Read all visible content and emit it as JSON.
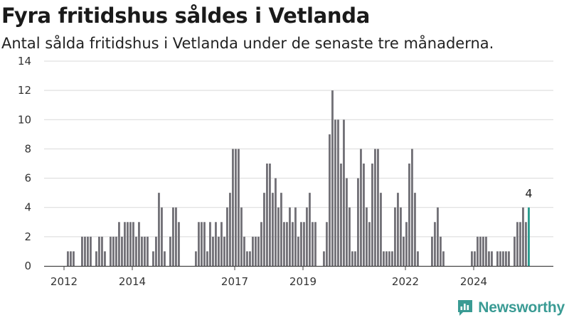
{
  "header": {
    "title": "Fyra fritidshus såldes i Vetlanda",
    "subtitle": "Antal sålda fritidshus i Vetlanda under de senaste tre månaderna."
  },
  "brand": {
    "name": "Newsworthy",
    "color": "#3a9b94"
  },
  "chart_data": {
    "type": "bar",
    "ylim": [
      0,
      14
    ],
    "yticks": [
      0,
      2,
      4,
      6,
      8,
      10,
      12,
      14
    ],
    "start_month": "2011-06",
    "xtick_labels": [
      {
        "label": "2012",
        "date": "2012-01"
      },
      {
        "label": "2014",
        "date": "2014-01"
      },
      {
        "label": "2017",
        "date": "2017-01"
      },
      {
        "label": "2019",
        "date": "2019-01"
      },
      {
        "label": "2022",
        "date": "2022-01"
      },
      {
        "label": "2024",
        "date": "2024-01"
      }
    ],
    "values": [
      0,
      0,
      0,
      0,
      0,
      0,
      0,
      0,
      1,
      1,
      1,
      0,
      0,
      2,
      2,
      2,
      2,
      0,
      1,
      2,
      2,
      1,
      0,
      2,
      2,
      2,
      3,
      2,
      3,
      3,
      3,
      3,
      2,
      3,
      2,
      2,
      2,
      0,
      1,
      2,
      5,
      4,
      1,
      0,
      2,
      4,
      4,
      3,
      0,
      0,
      0,
      0,
      0,
      1,
      3,
      3,
      3,
      1,
      3,
      2,
      3,
      2,
      3,
      2,
      4,
      5,
      8,
      8,
      8,
      4,
      2,
      1,
      1,
      2,
      2,
      2,
      3,
      5,
      7,
      7,
      5,
      6,
      4,
      5,
      3,
      3,
      4,
      3,
      4,
      2,
      3,
      3,
      4,
      5,
      3,
      3,
      0,
      0,
      1,
      3,
      9,
      12,
      10,
      10,
      7,
      10,
      6,
      4,
      1,
      1,
      6,
      8,
      7,
      4,
      3,
      7,
      8,
      8,
      5,
      1,
      1,
      1,
      1,
      4,
      5,
      4,
      2,
      3,
      7,
      8,
      5,
      1,
      0,
      0,
      0,
      0,
      2,
      3,
      4,
      2,
      1,
      0,
      0,
      0,
      0,
      0,
      0,
      0,
      0,
      0,
      1,
      1,
      2,
      2,
      2,
      2,
      1,
      1,
      0,
      1,
      1,
      1,
      1,
      1,
      0,
      2,
      3,
      3,
      4,
      3,
      4
    ],
    "colors": {
      "bar": "#737278",
      "highlight": "#2a9d8f"
    },
    "annotations": [
      {
        "text": "4",
        "target": "last"
      }
    ],
    "grid": true
  }
}
